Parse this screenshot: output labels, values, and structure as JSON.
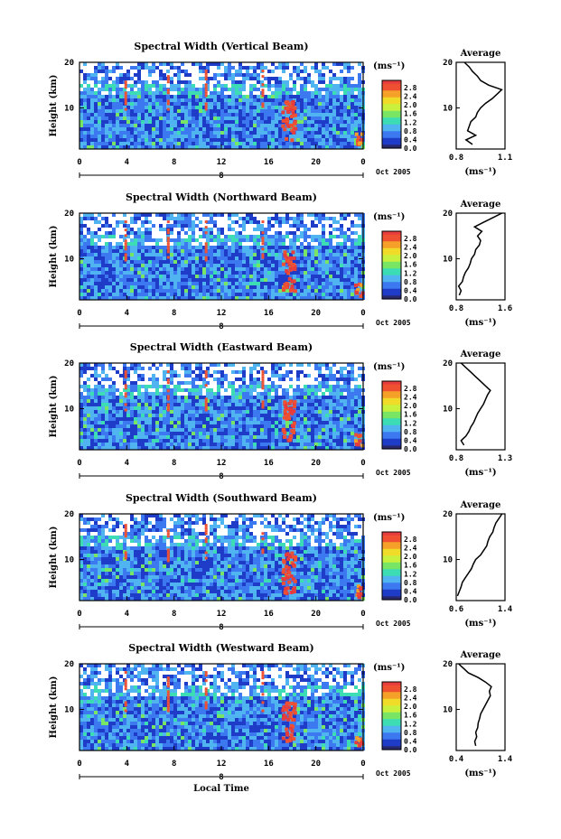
{
  "chart_data": [
    {
      "type": "heatmap",
      "title": "Spectral Width (Vertical Beam)",
      "ylabel": "Height (km)",
      "xticks": [
        "0",
        "4",
        "8",
        "12",
        "16",
        "20",
        "0"
      ],
      "yticks": [
        "20",
        "10"
      ],
      "xlim": [
        0,
        24
      ],
      "ylim": [
        1,
        20
      ],
      "date_marker": "8",
      "date_label": "Oct 2005",
      "colorbar": {
        "unit": "(ms⁻¹)",
        "ticks": [
          "2.8",
          "2.4",
          "2.0",
          "1.6",
          "1.2",
          "0.8",
          "0.4",
          "0.0"
        ]
      },
      "average": {
        "title": "Average",
        "xticks": [
          "0.8",
          "1.1"
        ],
        "xlim": [
          0.8,
          1.1
        ],
        "yticks": [
          "20",
          "10"
        ],
        "xlabel": "(ms⁻¹)",
        "profile": [
          [
            0.9,
            2
          ],
          [
            0.86,
            3
          ],
          [
            0.92,
            4
          ],
          [
            0.87,
            5
          ],
          [
            0.88,
            6
          ],
          [
            0.89,
            7
          ],
          [
            0.92,
            8
          ],
          [
            0.93,
            9
          ],
          [
            0.95,
            10
          ],
          [
            0.98,
            11
          ],
          [
            1.02,
            12
          ],
          [
            1.05,
            13
          ],
          [
            1.08,
            14
          ],
          [
            1.0,
            15
          ],
          [
            0.95,
            16
          ],
          [
            0.93,
            17
          ],
          [
            0.9,
            18
          ],
          [
            0.88,
            19
          ],
          [
            0.85,
            20
          ]
        ]
      }
    },
    {
      "type": "heatmap",
      "title": "Spectral Width (Northward Beam)",
      "ylabel": "Height (km)",
      "xticks": [
        "0",
        "4",
        "8",
        "12",
        "16",
        "20",
        "0"
      ],
      "yticks": [
        "20",
        "10"
      ],
      "xlim": [
        0,
        24
      ],
      "ylim": [
        1,
        20
      ],
      "date_marker": "8",
      "date_label": "Oct 2005",
      "colorbar": {
        "unit": "(ms⁻¹)",
        "ticks": [
          "2.8",
          "2.4",
          "2.0",
          "1.6",
          "1.2",
          "0.8",
          "0.4",
          "0.0"
        ]
      },
      "average": {
        "title": "Average",
        "xticks": [
          "0.8",
          "1.6"
        ],
        "xlim": [
          0.8,
          1.6
        ],
        "yticks": [
          "20",
          "10"
        ],
        "xlabel": "(ms⁻¹)",
        "profile": [
          [
            0.85,
            2
          ],
          [
            0.88,
            3
          ],
          [
            0.84,
            4
          ],
          [
            0.9,
            5
          ],
          [
            0.92,
            6
          ],
          [
            0.95,
            7
          ],
          [
            1.0,
            8
          ],
          [
            1.03,
            9
          ],
          [
            1.05,
            10
          ],
          [
            1.1,
            11
          ],
          [
            1.12,
            12
          ],
          [
            1.18,
            13
          ],
          [
            1.2,
            14
          ],
          [
            1.15,
            15
          ],
          [
            1.22,
            16
          ],
          [
            1.1,
            17
          ],
          [
            1.25,
            18
          ],
          [
            1.4,
            19
          ],
          [
            1.55,
            20
          ]
        ]
      }
    },
    {
      "type": "heatmap",
      "title": "Spectral Width (Eastward Beam)",
      "ylabel": "Height (km)",
      "xticks": [
        "0",
        "4",
        "8",
        "12",
        "16",
        "20",
        "0"
      ],
      "yticks": [
        "20",
        "10"
      ],
      "xlim": [
        0,
        24
      ],
      "ylim": [
        1,
        20
      ],
      "date_marker": "8",
      "date_label": "Oct 2005",
      "colorbar": {
        "unit": "(ms⁻¹)",
        "ticks": [
          "2.8",
          "2.4",
          "2.0",
          "1.6",
          "1.2",
          "0.8",
          "0.4",
          "0.0"
        ]
      },
      "average": {
        "title": "Average",
        "xticks": [
          "0.8",
          "1.3"
        ],
        "xlim": [
          0.8,
          1.3
        ],
        "yticks": [
          "20",
          "10"
        ],
        "xlabel": "(ms⁻¹)",
        "profile": [
          [
            0.88,
            2
          ],
          [
            0.85,
            3
          ],
          [
            0.9,
            4
          ],
          [
            0.93,
            5
          ],
          [
            0.95,
            6
          ],
          [
            0.98,
            7
          ],
          [
            1.0,
            8
          ],
          [
            1.02,
            9
          ],
          [
            1.05,
            10
          ],
          [
            1.08,
            11
          ],
          [
            1.1,
            12
          ],
          [
            1.12,
            13
          ],
          [
            1.15,
            14
          ],
          [
            1.1,
            15
          ],
          [
            1.05,
            16
          ],
          [
            1.0,
            17
          ],
          [
            0.95,
            18
          ],
          [
            0.9,
            19
          ],
          [
            0.85,
            20
          ]
        ]
      }
    },
    {
      "type": "heatmap",
      "title": "Spectral Width (Southward Beam)",
      "ylabel": "Height (km)",
      "xticks": [
        "0",
        "4",
        "8",
        "12",
        "16",
        "20",
        "0"
      ],
      "yticks": [
        "20",
        "10"
      ],
      "xlim": [
        0,
        24
      ],
      "ylim": [
        1,
        20
      ],
      "date_marker": "8",
      "date_label": "Oct 2005",
      "colorbar": {
        "unit": "(ms⁻¹)",
        "ticks": [
          "2.8",
          "2.4",
          "2.0",
          "1.6",
          "1.2",
          "0.8",
          "0.4",
          "0.0"
        ]
      },
      "average": {
        "title": "Average",
        "xticks": [
          "0.6",
          "1.4"
        ],
        "xlim": [
          0.6,
          1.4
        ],
        "yticks": [
          "20",
          "10"
        ],
        "xlabel": "(ms⁻¹)",
        "profile": [
          [
            0.62,
            2
          ],
          [
            0.65,
            3
          ],
          [
            0.68,
            4
          ],
          [
            0.7,
            5
          ],
          [
            0.75,
            6
          ],
          [
            0.8,
            7
          ],
          [
            0.85,
            8
          ],
          [
            0.88,
            9
          ],
          [
            0.92,
            10
          ],
          [
            1.0,
            11
          ],
          [
            1.05,
            12
          ],
          [
            1.1,
            13
          ],
          [
            1.12,
            14
          ],
          [
            1.15,
            15
          ],
          [
            1.2,
            16
          ],
          [
            1.22,
            17
          ],
          [
            1.25,
            18
          ],
          [
            1.3,
            19
          ],
          [
            1.35,
            20
          ]
        ]
      }
    },
    {
      "type": "heatmap",
      "title": "Spectral Width (Westward Beam)",
      "ylabel": "Height (km)",
      "xlabel": "Local Time",
      "xticks": [
        "0",
        "4",
        "8",
        "12",
        "16",
        "20",
        "0"
      ],
      "yticks": [
        "20",
        "10"
      ],
      "xlim": [
        0,
        24
      ],
      "ylim": [
        1,
        20
      ],
      "date_marker": "8",
      "date_label": "Oct 2005",
      "colorbar": {
        "unit": "(ms⁻¹)",
        "ticks": [
          "2.8",
          "2.4",
          "2.0",
          "1.6",
          "1.2",
          "0.8",
          "0.4",
          "0.0"
        ]
      },
      "average": {
        "title": "Average",
        "xticks": [
          "0.4",
          "1.4"
        ],
        "xlim": [
          0.4,
          1.4
        ],
        "yticks": [
          "20",
          "10"
        ],
        "xlabel": "(ms⁻¹)",
        "profile": [
          [
            0.8,
            2
          ],
          [
            0.78,
            3
          ],
          [
            0.82,
            4
          ],
          [
            0.8,
            5
          ],
          [
            0.84,
            6
          ],
          [
            0.85,
            7
          ],
          [
            0.88,
            8
          ],
          [
            0.9,
            9
          ],
          [
            0.95,
            10
          ],
          [
            1.0,
            11
          ],
          [
            1.05,
            12
          ],
          [
            1.1,
            13
          ],
          [
            1.08,
            14
          ],
          [
            1.12,
            15
          ],
          [
            1.0,
            16
          ],
          [
            0.85,
            17
          ],
          [
            0.65,
            18
          ],
          [
            0.55,
            19
          ],
          [
            0.45,
            20
          ]
        ]
      }
    }
  ],
  "colors": {
    "scale": [
      "#28286e",
      "#1e3cc8",
      "#3c78f0",
      "#50b4f0",
      "#3cdcb4",
      "#78e664",
      "#c8f03c",
      "#f0dc28",
      "#f5a028",
      "#f05032",
      "#e63c3c"
    ],
    "frame": "#000000"
  }
}
